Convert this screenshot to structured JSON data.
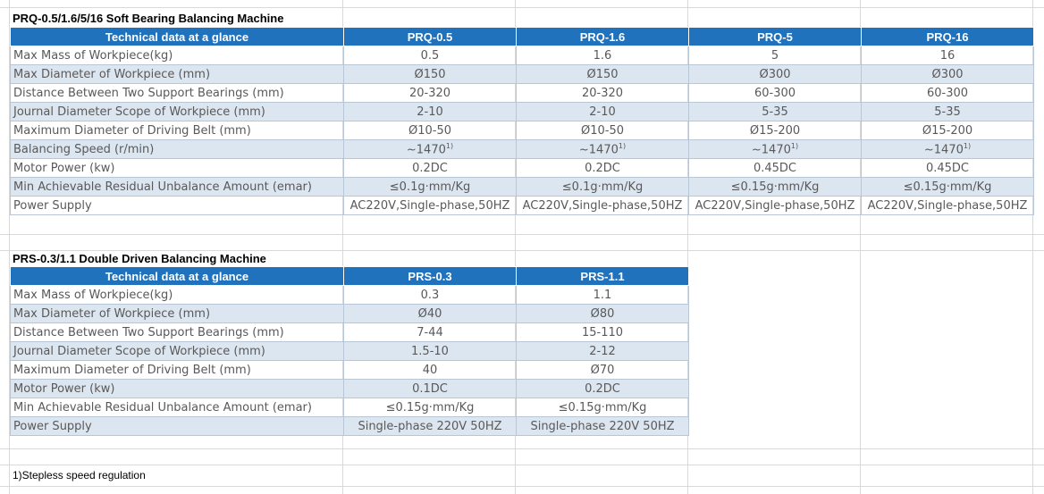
{
  "table1": {
    "title": "PRQ-0.5/1.6/5/16 Soft Bearing Balancing Machine",
    "header": [
      "Technical data at a glance",
      "PRQ-0.5",
      "PRQ-1.6",
      "PRQ-5",
      "PRQ-16"
    ],
    "rows": [
      [
        "Max Mass of Workpiece(kg)",
        "0.5",
        "1.6",
        "5",
        "16"
      ],
      [
        "Max Diameter of Workpiece (mm)",
        "Ø150",
        "Ø150",
        "Ø300",
        "Ø300"
      ],
      [
        "Distance Between Two Support Bearings (mm)",
        "20-320",
        "20-320",
        "60-300",
        "60-300"
      ],
      [
        "Journal Diameter Scope of Workpiece (mm)",
        "2-10",
        "2-10",
        "5-35",
        "5-35"
      ],
      [
        "Maximum Diameter of Driving Belt (mm)",
        "Ø10-50",
        "Ø10-50",
        "Ø15-200",
        "Ø15-200"
      ],
      [
        "Balancing Speed (r/min)",
        "~1470",
        "~1470",
        "~1470",
        "~1470"
      ],
      [
        "Motor Power (kw)",
        "0.2DC",
        "0.2DC",
        "0.45DC",
        "0.45DC"
      ],
      [
        "Min Achievable Residual Unbalance Amount (emar)",
        "≤0.1g·mm/Kg",
        "≤0.1g·mm/Kg",
        "≤0.15g·mm/Kg",
        "≤0.15g·mm/Kg"
      ],
      [
        "Power Supply",
        "AC220V,Single-phase,50HZ",
        "AC220V,Single-phase,50HZ",
        "AC220V,Single-phase,50HZ",
        "AC220V,Single-phase,50HZ"
      ]
    ],
    "speed_footnote_marker": "1)"
  },
  "table2": {
    "title": "PRS-0.3/1.1 Double Driven Balancing Machine",
    "header": [
      "Technical data at a glance",
      "PRS-0.3",
      "PRS-1.1"
    ],
    "rows": [
      [
        "Max Mass of Workpiece(kg)",
        "0.3",
        "1.1"
      ],
      [
        "Max Diameter of Workpiece (mm)",
        "Ø40",
        "Ø80"
      ],
      [
        "Distance Between Two Support Bearings (mm)",
        "7-44",
        "15-110"
      ],
      [
        "Journal Diameter Scope of Workpiece (mm)",
        "1.5-10",
        "2-12"
      ],
      [
        "Maximum Diameter of Driving Belt (mm)",
        "40",
        "Ø70"
      ],
      [
        "Motor Power (kw)",
        "0.1DC",
        "0.2DC"
      ],
      [
        "Min Achievable Residual Unbalance Amount (emar)",
        "≤0.15g·mm/Kg",
        "≤0.15g·mm/Kg"
      ],
      [
        "Power Supply",
        "Single-phase 220V 50HZ",
        "Single-phase 220V 50HZ"
      ]
    ]
  },
  "footnote": "1)Stepless speed regulation",
  "colors": {
    "header_bg": "#1f72bb",
    "shade_bg": "#dce6f1",
    "grid": "#d9d9d9"
  }
}
